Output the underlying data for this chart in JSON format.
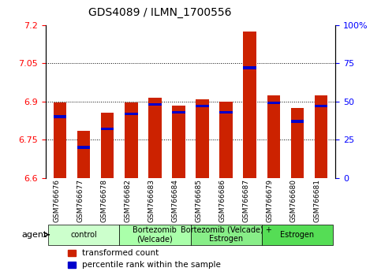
{
  "title": "GDS4089 / ILMN_1700556",
  "samples": [
    "GSM766676",
    "GSM766677",
    "GSM766678",
    "GSM766682",
    "GSM766683",
    "GSM766684",
    "GSM766685",
    "GSM766686",
    "GSM766687",
    "GSM766679",
    "GSM766680",
    "GSM766681"
  ],
  "red_values": [
    6.895,
    6.785,
    6.855,
    6.895,
    6.915,
    6.885,
    6.91,
    6.9,
    7.175,
    6.925,
    6.875,
    6.925
  ],
  "blue_values": [
    40,
    20,
    32,
    42,
    48,
    43,
    47,
    43,
    72,
    49,
    37,
    47
  ],
  "ymin": 6.6,
  "ymax": 7.2,
  "yticks": [
    6.6,
    6.75,
    6.9,
    7.05,
    7.2
  ],
  "ytick_labels": [
    "6.6",
    "6.75",
    "6.9",
    "7.05",
    "7.2"
  ],
  "y2min": 0,
  "y2max": 100,
  "y2ticks": [
    0,
    25,
    50,
    75,
    100
  ],
  "y2tick_labels": [
    "0",
    "25",
    "50",
    "75",
    "100%"
  ],
  "groups": [
    {
      "label": "control",
      "start": 0,
      "end": 3,
      "color": "#ccffcc"
    },
    {
      "label": "Bortezomib\n(Velcade)",
      "start": 3,
      "end": 6,
      "color": "#aaffaa"
    },
    {
      "label": "Bortezomib (Velcade) +\nEstrogen",
      "start": 6,
      "end": 9,
      "color": "#88ee88"
    },
    {
      "label": "Estrogen",
      "start": 9,
      "end": 12,
      "color": "#55dd55"
    }
  ],
  "agent_label": "agent",
  "legend_red": "transformed count",
  "legend_blue": "percentile rank within the sample",
  "bar_width": 0.55,
  "bar_color_red": "#cc2200",
  "bar_color_blue": "#0000cc",
  "bg_color": "#f0f0f0"
}
